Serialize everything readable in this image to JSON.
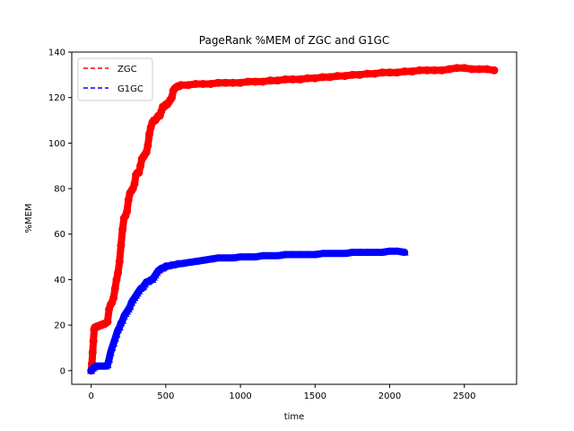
{
  "chart_data": {
    "type": "scatter",
    "title": "PageRank %MEM of ZGC and G1GC",
    "xlabel": "time",
    "ylabel": "%MEM",
    "xlim": [
      -130,
      2850
    ],
    "ylim": [
      -6,
      140
    ],
    "xticks": [
      0,
      500,
      1000,
      1500,
      2000,
      2500
    ],
    "yticks": [
      0,
      20,
      40,
      60,
      80,
      100,
      120,
      140
    ],
    "grid": false,
    "legend_position": "top-left",
    "series": [
      {
        "name": "ZGC",
        "color": "#ff0000",
        "marker": "circle",
        "x": [
          0,
          5,
          10,
          15,
          20,
          25,
          30,
          40,
          50,
          60,
          70,
          80,
          90,
          100,
          110,
          120,
          130,
          140,
          150,
          160,
          170,
          180,
          190,
          200,
          210,
          220,
          230,
          240,
          250,
          260,
          270,
          280,
          290,
          300,
          310,
          320,
          330,
          340,
          350,
          360,
          370,
          380,
          390,
          400,
          410,
          420,
          430,
          440,
          450,
          460,
          470,
          480,
          490,
          500,
          510,
          520,
          530,
          540,
          550,
          560,
          570,
          580,
          590,
          600,
          650,
          700,
          750,
          800,
          850,
          900,
          950,
          1000,
          1050,
          1100,
          1150,
          1200,
          1250,
          1300,
          1350,
          1400,
          1450,
          1500,
          1550,
          1600,
          1650,
          1700,
          1750,
          1800,
          1850,
          1900,
          1950,
          2000,
          2050,
          2100,
          2150,
          2200,
          2250,
          2300,
          2350,
          2400,
          2450,
          2500,
          2550,
          2600,
          2650,
          2700
        ],
        "y": [
          0,
          3,
          8,
          13,
          18,
          19,
          19,
          19.5,
          19.5,
          20,
          20,
          20.5,
          20.5,
          21,
          21.5,
          27,
          29,
          30,
          32,
          36,
          40,
          43,
          48,
          55,
          62,
          67,
          68,
          70,
          75,
          78,
          79,
          80,
          82,
          86,
          87,
          87,
          90,
          93,
          94,
          95,
          96,
          99,
          104,
          107,
          109,
          110,
          110,
          111,
          112,
          112,
          114,
          116,
          116,
          117,
          117,
          118,
          119,
          120,
          123,
          124,
          124.5,
          125,
          125,
          125.5,
          125.5,
          126,
          126,
          126,
          126.5,
          126.5,
          126.5,
          126.5,
          127,
          127,
          127,
          127.5,
          127.5,
          128,
          128,
          128,
          128.5,
          128.5,
          129,
          129,
          129.5,
          129.5,
          130,
          130,
          130.5,
          130.5,
          131,
          131,
          131,
          131.5,
          131.5,
          132,
          132,
          132,
          132,
          132.5,
          133,
          133,
          132.5,
          132.5,
          132.5,
          132
        ]
      },
      {
        "name": "G1GC",
        "color": "#0000ff",
        "marker": "triangle",
        "x": [
          0,
          10,
          20,
          30,
          40,
          50,
          60,
          70,
          80,
          90,
          100,
          110,
          120,
          130,
          140,
          150,
          160,
          170,
          180,
          190,
          200,
          210,
          220,
          230,
          240,
          250,
          260,
          270,
          280,
          290,
          300,
          310,
          320,
          330,
          340,
          350,
          360,
          370,
          380,
          390,
          400,
          410,
          420,
          430,
          440,
          450,
          460,
          470,
          480,
          490,
          500,
          520,
          540,
          560,
          580,
          600,
          650,
          700,
          750,
          800,
          850,
          900,
          950,
          1000,
          1050,
          1100,
          1150,
          1200,
          1250,
          1300,
          1350,
          1400,
          1450,
          1500,
          1550,
          1600,
          1650,
          1700,
          1750,
          1800,
          1850,
          1900,
          1950,
          2000,
          2050,
          2100
        ],
        "y": [
          0,
          1,
          1.5,
          2,
          2,
          2,
          2,
          2,
          2,
          2,
          2,
          2.5,
          5,
          8,
          10,
          12,
          14,
          16,
          18,
          19,
          21,
          22,
          24,
          25,
          26,
          27,
          28,
          30,
          31,
          32,
          33,
          34,
          35,
          36,
          36.5,
          37,
          38,
          39,
          39,
          39.5,
          40,
          40,
          41,
          42,
          43,
          44,
          44.5,
          45,
          45,
          45.5,
          46,
          46,
          46.5,
          46.5,
          47,
          47,
          47.5,
          48,
          48.5,
          49,
          49.5,
          49.5,
          49.5,
          50,
          50,
          50,
          50.5,
          50.5,
          50.5,
          51,
          51,
          51,
          51,
          51,
          51.5,
          51.5,
          51.5,
          51.5,
          52,
          52,
          52,
          52,
          52,
          52.5,
          52.5,
          52
        ]
      }
    ]
  }
}
